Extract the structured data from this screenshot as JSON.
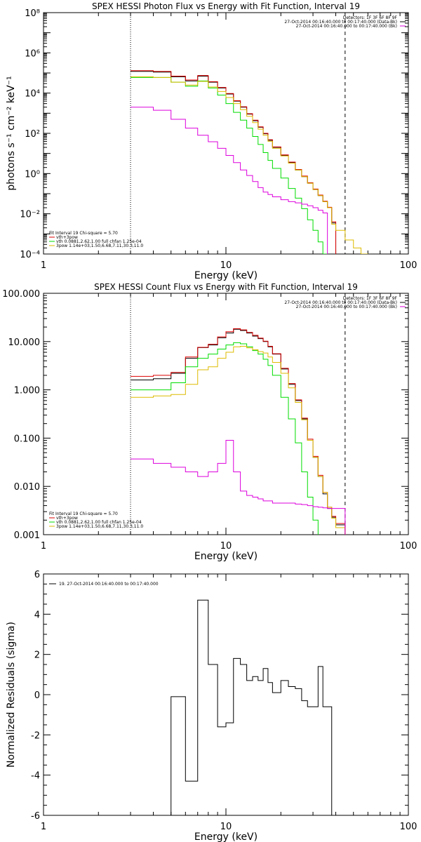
{
  "chart_data": [
    {
      "type": "line",
      "title": "SPEX HESSI Photon Flux vs Energy with Fit Function, Interval 19",
      "xlabel": "Energy (keV)",
      "ylabel": "photons s⁻¹ cm⁻² keV⁻¹",
      "xscale": "log",
      "yscale": "log",
      "xlim": [
        1,
        100
      ],
      "ylim": [
        0.0001,
        100000000
      ],
      "x_ticks": [
        {
          "v": 1,
          "label": "1"
        },
        {
          "v": 10,
          "label": "10"
        },
        {
          "v": 100,
          "label": "100"
        }
      ],
      "y_ticks": [
        {
          "v": 0.0001,
          "label": "10⁻⁴"
        },
        {
          "v": 0.01,
          "label": "10⁻²"
        },
        {
          "v": 1,
          "label": "10⁰"
        },
        {
          "v": 100,
          "label": "10²"
        },
        {
          "v": 10000,
          "label": "10⁴"
        },
        {
          "v": 1000000,
          "label": "10⁶"
        },
        {
          "v": 100000000,
          "label": "10⁸"
        }
      ],
      "vlines": [
        {
          "x": 3,
          "style": "dotted"
        },
        {
          "x": 45,
          "style": "dashed"
        }
      ],
      "legend_right": [
        "Detectors: 1F 3F 6F 8F 9F",
        "27-Oct-2014 00:16:40.000 to 00:17:40.000 (Data-Bk)",
        "27-Oct-2014 00:16:40.000 to 00:17:40.000 (Bk)"
      ],
      "legend_left": [
        "Fit Interval 19   Chi-square = 5.70",
        "vth+3pow",
        "vth 0.0881,2.62,1.00  full chfan 1.25e-04",
        "3pow 1.14e+03,1.50,6.68,7.11,30.3,11.0"
      ],
      "bin_edges": [
        3,
        4,
        5,
        6,
        7,
        8,
        9,
        10,
        11,
        12,
        13,
        14,
        15,
        16,
        17,
        18,
        20,
        22,
        24,
        26,
        28,
        30,
        32,
        34,
        36,
        38,
        40,
        45,
        50,
        55,
        60,
        65
      ],
      "series": [
        {
          "name": "Data-Bk",
          "color": "#000000",
          "values": [
            120000,
            110000,
            65000,
            40000,
            70000,
            35000,
            18000,
            9000,
            4000,
            2000,
            900,
            420,
            200,
            95,
            45,
            20,
            8,
            3.5,
            1.5,
            0.7,
            0.33,
            0.16,
            0.08,
            0.04,
            0.02,
            0.0035
          ]
        },
        {
          "name": "vth+3pow",
          "color": "#dd0000",
          "values": [
            130000,
            120000,
            70000,
            45000,
            75000,
            37000,
            19000,
            9500,
            4200,
            2100,
            950,
            450,
            210,
            100,
            48,
            21,
            8.5,
            3.7,
            1.6,
            0.75,
            0.35,
            0.17,
            0.085,
            0.042,
            0.021,
            0.004
          ]
        },
        {
          "name": "vth",
          "color": "#00dd00",
          "values": [
            60000,
            60000,
            35000,
            22000,
            40000,
            18000,
            8000,
            3000,
            1100,
            450,
            180,
            70,
            28,
            11,
            4.5,
            1.8,
            0.6,
            0.18,
            0.06,
            0.018,
            0.005,
            0.0015,
            0.0004,
            0.0001
          ]
        },
        {
          "name": "3pow",
          "color": "#ddbb00",
          "values": [
            65000,
            60000,
            35000,
            25000,
            38000,
            20000,
            12000,
            6000,
            3000,
            1500,
            700,
            340,
            160,
            80,
            40,
            18,
            7.5,
            3.3,
            1.5,
            0.7,
            0.33,
            0.16,
            0.08,
            0.04,
            0.02,
            0.003,
            0.0015,
            0.0005,
            0.0002,
            0.0001
          ]
        },
        {
          "name": "Bk",
          "color": "#dd00dd",
          "values": [
            2000,
            1400,
            500,
            180,
            80,
            38,
            18,
            8,
            3.5,
            1.5,
            0.8,
            0.4,
            0.2,
            0.12,
            0.09,
            0.07,
            0.05,
            0.04,
            0.035,
            0.03,
            0.025,
            0.02,
            0.015,
            0.011
          ]
        }
      ]
    },
    {
      "type": "line",
      "title": "SPEX HESSI Count Flux vs Energy with Fit Function, Interval 19",
      "xlabel": "Energy (keV)",
      "ylabel": "",
      "xscale": "log",
      "yscale": "log",
      "xlim": [
        1,
        100
      ],
      "ylim": [
        0.001,
        100
      ],
      "x_ticks": [
        {
          "v": 1,
          "label": "1"
        },
        {
          "v": 10,
          "label": "10"
        },
        {
          "v": 100,
          "label": "100"
        }
      ],
      "y_ticks": [
        {
          "v": 0.001,
          "label": "0.001"
        },
        {
          "v": 0.01,
          "label": "0.010"
        },
        {
          "v": 0.1,
          "label": "0.100"
        },
        {
          "v": 1,
          "label": "1.000"
        },
        {
          "v": 10,
          "label": "10.000"
        },
        {
          "v": 100,
          "label": "100.000"
        }
      ],
      "vlines": [
        {
          "x": 3,
          "style": "dotted"
        },
        {
          "x": 45,
          "style": "dashed"
        }
      ],
      "legend_right": [
        "Detectors: 1F 3F 6F 8F 9F",
        "27-Oct-2014 00:16:40.000 to 00:17:40.000 (Data-Bk)",
        "27-Oct-2014 00:16:40.000 to 00:17:40.000 (Bk)"
      ],
      "legend_left": [
        "Fit Interval 19   Chi-square = 5.70",
        "vth+3pow",
        "vth 0.0881,2.62,1.00  full chfan 1.25e-04",
        "3pow 1.14e+03,1.50,6.68,7.11,30.3,11.0"
      ],
      "bin_edges": [
        3,
        4,
        5,
        6,
        7,
        8,
        9,
        10,
        11,
        12,
        13,
        14,
        15,
        16,
        17,
        18,
        20,
        22,
        24,
        26,
        28,
        30,
        32,
        34,
        36,
        38,
        40,
        45
      ],
      "series": [
        {
          "name": "Data-Bk",
          "color": "#000000",
          "values": [
            1.6,
            1.7,
            2.2,
            4.5,
            7.5,
            8.5,
            12,
            15,
            18,
            17,
            15,
            13,
            11.5,
            10,
            7.8,
            5.5,
            2.7,
            1.3,
            0.6,
            0.25,
            0.09,
            0.04,
            0.016,
            0.007,
            0.0035,
            0.0023,
            0.0016
          ]
        },
        {
          "name": "vth+3pow",
          "color": "#dd0000",
          "values": [
            1.9,
            2.0,
            2.3,
            4.8,
            7.6,
            8.8,
            12.5,
            16,
            18.5,
            17.5,
            15.5,
            13.5,
            11.8,
            10.2,
            8,
            5.6,
            2.8,
            1.35,
            0.62,
            0.26,
            0.095,
            0.042,
            0.017,
            0.0075,
            0.0037,
            0.0024,
            0.0017
          ]
        },
        {
          "name": "vth",
          "color": "#00dd00",
          "values": [
            1.0,
            1.0,
            1.4,
            3.0,
            4.5,
            5.5,
            7.0,
            8.5,
            9.5,
            9.0,
            7.8,
            6.5,
            5.5,
            4.3,
            3.2,
            2.0,
            0.7,
            0.25,
            0.08,
            0.02,
            0.006,
            0.002
          ]
        },
        {
          "name": "3pow",
          "color": "#ddbb00",
          "values": [
            0.7,
            0.75,
            0.8,
            1.3,
            2.6,
            3.0,
            4.5,
            6.0,
            7.8,
            8.0,
            7.4,
            6.8,
            6.2,
            5.8,
            4.8,
            3.7,
            2.2,
            1.1,
            0.55,
            0.24,
            0.09,
            0.04,
            0.016,
            0.0075,
            0.0037,
            0.0022,
            0.0014
          ]
        },
        {
          "name": "Bk",
          "color": "#dd00dd",
          "values": [
            0.037,
            0.03,
            0.025,
            0.02,
            0.016,
            0.02,
            0.03,
            0.09,
            0.02,
            0.008,
            0.0065,
            0.006,
            0.0055,
            0.005,
            0.005,
            0.0045,
            0.0045,
            0.0045,
            0.0043,
            0.0042,
            0.004,
            0.0038,
            0.0037,
            0.0036,
            0.0035,
            0.0035,
            0.0035
          ]
        }
      ]
    },
    {
      "type": "line",
      "title": "",
      "xlabel": "Energy (keV)",
      "ylabel": "Normalized Residuals (sigma)",
      "xscale": "log",
      "yscale": "linear",
      "xlim": [
        1,
        100
      ],
      "ylim": [
        -6,
        6
      ],
      "x_ticks": [
        {
          "v": 1,
          "label": "1"
        },
        {
          "v": 10,
          "label": "10"
        },
        {
          "v": 100,
          "label": "100"
        }
      ],
      "y_ticks": [
        {
          "v": -6,
          "label": "-6"
        },
        {
          "v": -4,
          "label": "-4"
        },
        {
          "v": -2,
          "label": "-2"
        },
        {
          "v": 0,
          "label": "0"
        },
        {
          "v": 2,
          "label": "2"
        },
        {
          "v": 4,
          "label": "4"
        },
        {
          "v": 6,
          "label": "6"
        }
      ],
      "legend_right": [],
      "legend_left": [],
      "legend_top": "19. 27-Oct-2014 00:16:40.000 to 00:17:40.000",
      "bin_edges": [
        3,
        4,
        5,
        6,
        7,
        8,
        9,
        10,
        11,
        12,
        13,
        14,
        15,
        16,
        17,
        18,
        20,
        22,
        24,
        26,
        28,
        30,
        32,
        34,
        36,
        38,
        40,
        45
      ],
      "series": [
        {
          "name": "19",
          "color": "#000000",
          "values": [
            -6,
            -6,
            -0.1,
            -4.3,
            4.7,
            1.5,
            -1.6,
            -1.4,
            1.8,
            1.5,
            0.7,
            0.9,
            0.7,
            1.3,
            0.6,
            0.1,
            0.7,
            0.4,
            0.3,
            -0.3,
            -0.6,
            -0.6,
            1.4,
            -0.6,
            -0.6,
            -6
          ]
        }
      ]
    }
  ]
}
